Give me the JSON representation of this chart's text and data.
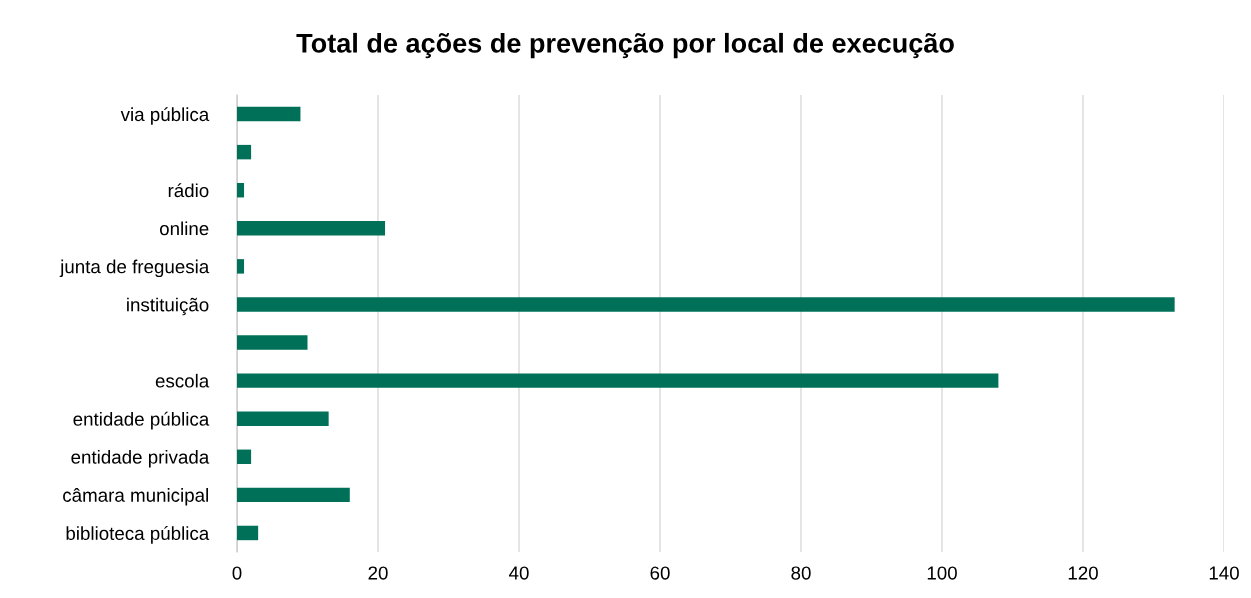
{
  "chart_data": {
    "type": "bar",
    "orientation": "horizontal",
    "title": "Total de ações de prevenção por local de execução",
    "categories": [
      "via pública",
      null,
      "rádio",
      "online",
      "junta de freguesia",
      "instituição",
      null,
      "escola",
      "entidade pública",
      "entidade privada",
      "câmara municipal",
      "biblioteca pública"
    ],
    "values": [
      9,
      2,
      1,
      21,
      1,
      133,
      10,
      108,
      13,
      2,
      16,
      3
    ],
    "color": "#007158",
    "xlim": [
      0,
      140
    ],
    "xticks": [
      0,
      20,
      40,
      60,
      80,
      100,
      120,
      140
    ],
    "grid": "x"
  }
}
